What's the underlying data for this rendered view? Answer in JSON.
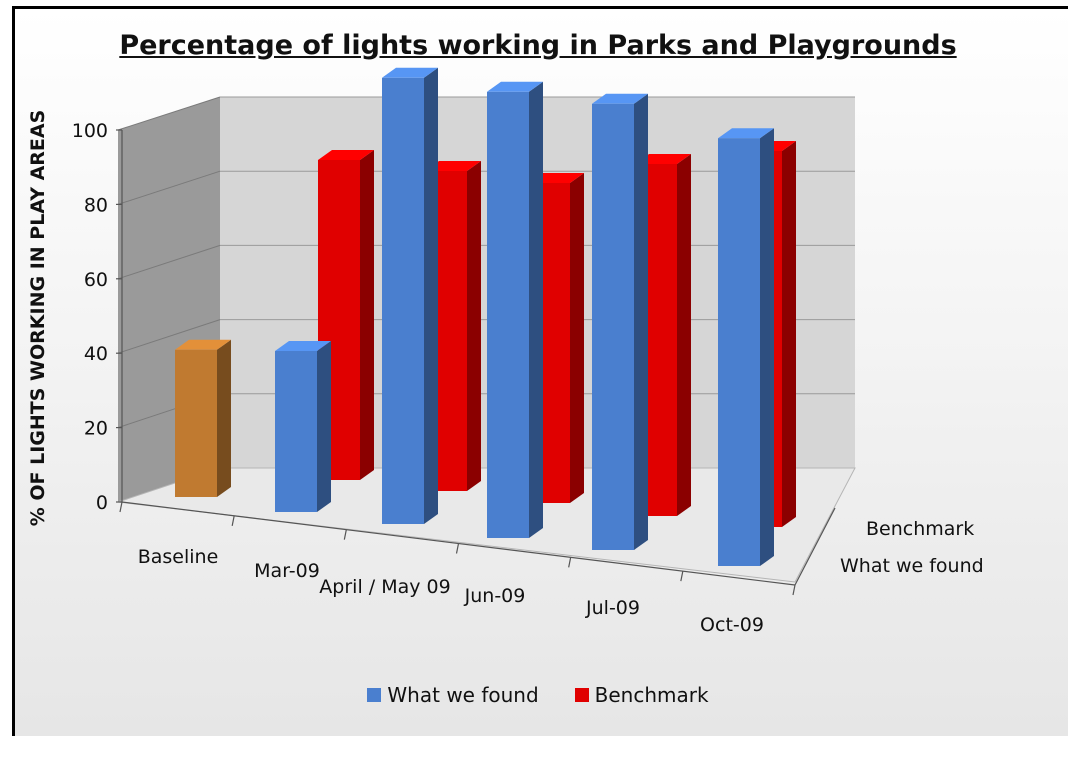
{
  "chart_data": {
    "type": "bar",
    "title": "Percentage of lights working in Parks and Playgrounds",
    "ylabel": "% OF LIGHTS WORKING IN PLAY AREAS",
    "xlabel": "",
    "ylim": [
      0,
      100
    ],
    "yticks": [
      "0",
      "20",
      "40",
      "60",
      "80",
      "100"
    ],
    "categories": [
      "Baseline",
      "Mar-09",
      "April / May 09",
      "Jun-09",
      "Jul-09",
      "Oct-09"
    ],
    "depth_labels": [
      "Benchmark",
      "What we found"
    ],
    "series": [
      {
        "name": "What we found",
        "values": [
          32,
          35,
          97,
          97,
          97,
          93
        ],
        "color": "#4a7fcf"
      },
      {
        "name": "Benchmark",
        "values": [
          null,
          80,
          80,
          80,
          88,
          94
        ],
        "color": "#e00000"
      }
    ],
    "baseline_color": "#c07a30",
    "grid": true,
    "legend_position": "bottom"
  }
}
